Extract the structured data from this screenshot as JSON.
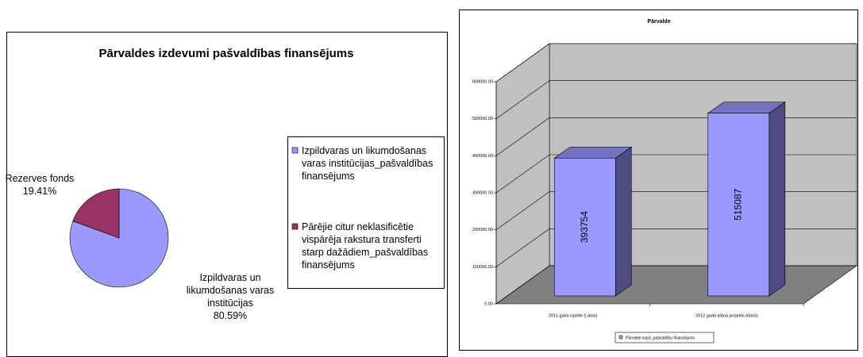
{
  "chart_data": [
    {
      "type": "pie",
      "title": "Pārvaldes izdevumi pašvaldības finansējums",
      "categories": [
        "Izpildvaras un likumdošanas varas institūcijas_pašvaldības finansējums",
        "Pārējie citur neklasificētie vispārēja rakstura transferti starp dažādiem_pašvaldības finansējums"
      ],
      "labels": [
        "Izpildvaras un likumdošanas varas institūcijas",
        "Rezerves fonds"
      ],
      "values": [
        80.59,
        19.41
      ],
      "value_labels": [
        "80.59%",
        "19.41%"
      ],
      "colors": [
        "#9999ff",
        "#993366"
      ],
      "legend": "right"
    },
    {
      "type": "bar",
      "title": "Pārvalde",
      "categories": [
        "2011.gada izpilde (Latos)",
        "2012.gada plāna projekts (latos)"
      ],
      "series": [
        {
          "name": "Pārvalde kopā_pašvaldību finansējums",
          "color": "#9999ff",
          "values": [
            393754,
            515087
          ]
        }
      ],
      "ylim": [
        0,
        600000
      ],
      "yticks": [
        {
          "value": 0,
          "label": "0.00"
        },
        {
          "value": 100000,
          "label": "100000.00"
        },
        {
          "value": 200000,
          "label": "200000.00"
        },
        {
          "value": 300000,
          "label": "300000.00"
        },
        {
          "value": 400000,
          "label": "400000.00"
        },
        {
          "value": 500000,
          "label": "500000.00"
        },
        {
          "value": 600000,
          "label": "600000.00"
        }
      ],
      "grid": true,
      "legend": "bottom"
    }
  ]
}
